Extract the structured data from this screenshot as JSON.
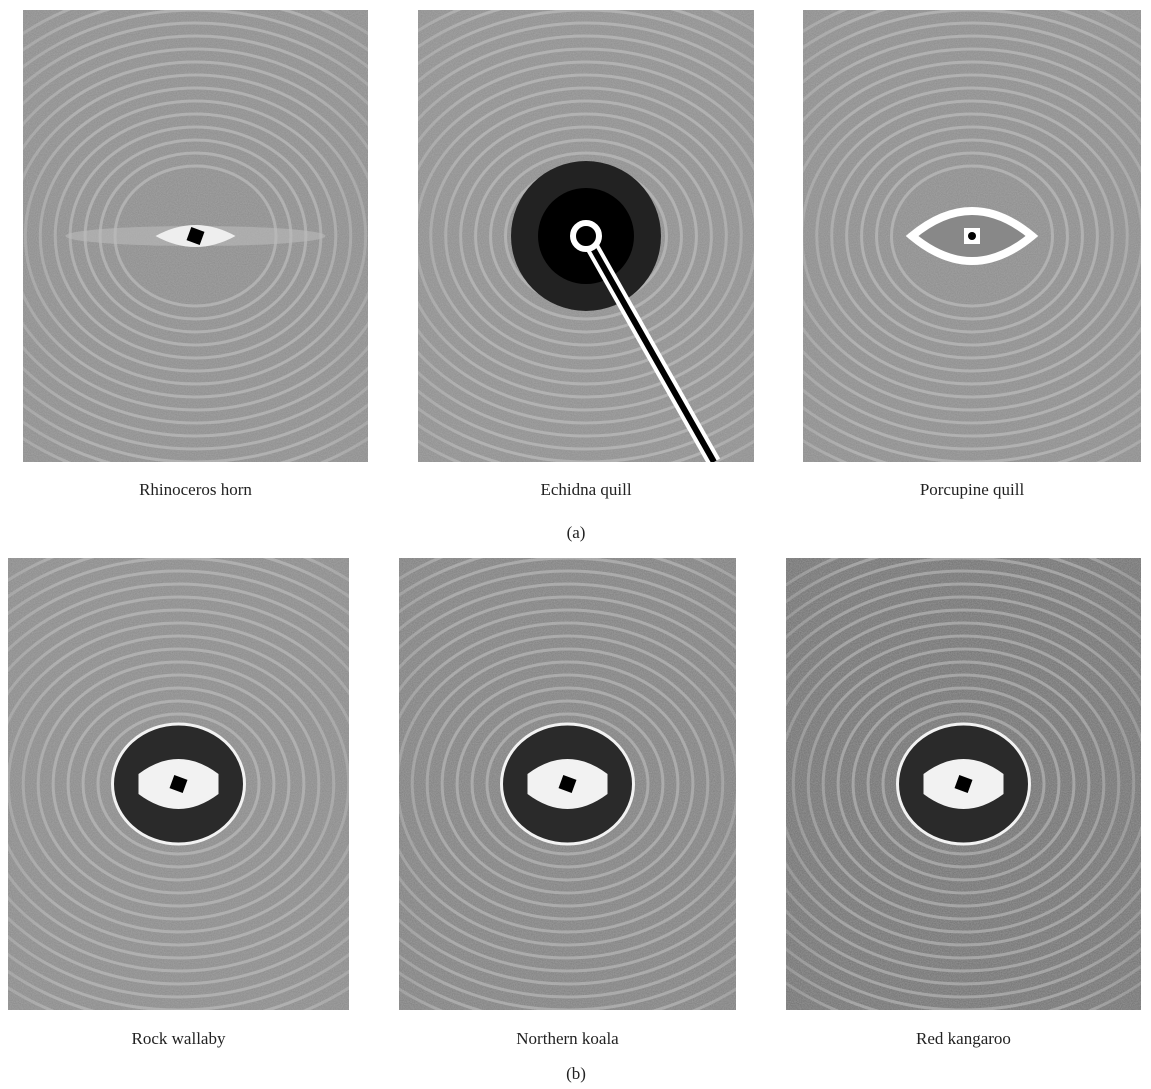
{
  "panels": [
    {
      "label": "(a)",
      "images": [
        {
          "caption": "Rhinoceros horn"
        },
        {
          "caption": "Echidna quill"
        },
        {
          "caption": "Porcupine quill"
        }
      ]
    },
    {
      "label": "(b)",
      "images": [
        {
          "caption": "Rock wallaby"
        },
        {
          "caption": "Northern koala"
        },
        {
          "caption": "Red kangaroo"
        }
      ]
    }
  ]
}
